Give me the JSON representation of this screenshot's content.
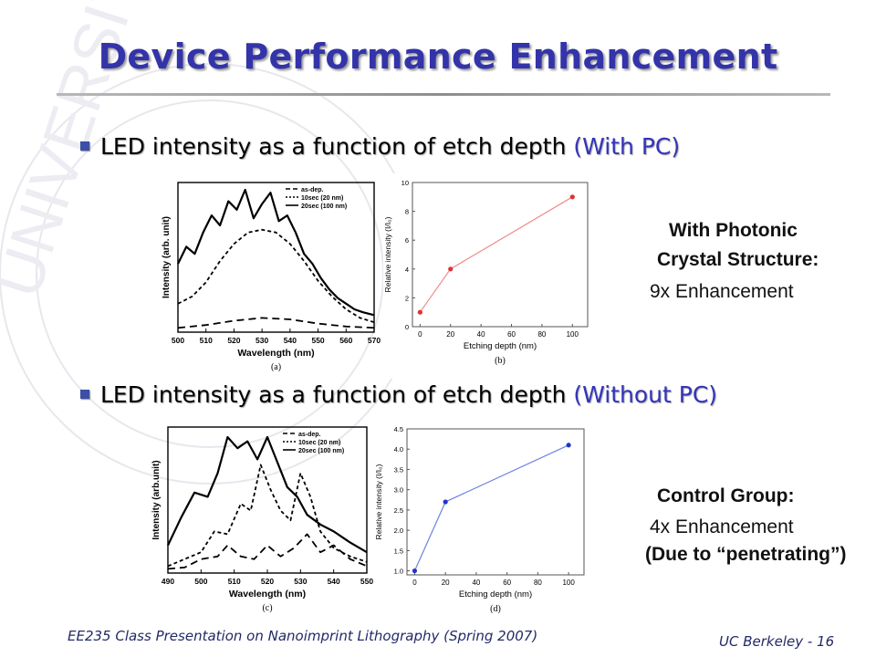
{
  "slide": {
    "title": "Device Performance Enhancement",
    "bullet1": {
      "text": "LED intensity as a function of etch depth ",
      "highlight": "(With PC)"
    },
    "bullet2": {
      "text": "LED intensity as a function of etch depth ",
      "highlight": "(Without PC)"
    },
    "note1": {
      "line1": "With Photonic",
      "line2": "Crystal Structure:",
      "line3": "9x Enhancement"
    },
    "note2": {
      "line1": "Control Group:",
      "line2": "4x Enhancement",
      "line3": "(Due to “penetrating”)"
    },
    "footer_left": "EE235 Class Presentation on Nanoimprint Lithography (Spring 2007)",
    "footer_right": "UC Berkeley - 16"
  },
  "colors": {
    "title": "#3333aa",
    "accent": "#3333bb",
    "series_pc": "#e03030",
    "series_control": "#2233cc"
  },
  "chart_data": [
    {
      "type": "line",
      "panel_label": "(a)",
      "xlabel": "Wavelength (nm)",
      "ylabel": "Intensity (arb. unit)",
      "xticks": [
        "500",
        "510",
        "520",
        "530",
        "540",
        "550",
        "560",
        "570"
      ],
      "xlim": [
        500,
        570
      ],
      "legend": [
        "as-dep.",
        "10sec (20 nm)",
        "20sec (100 nm)"
      ],
      "series": [
        {
          "name": "as-dep.",
          "x": [
            500,
            510,
            520,
            530,
            540,
            550,
            560,
            570
          ],
          "values": [
            0.03,
            0.05,
            0.08,
            0.1,
            0.09,
            0.06,
            0.04,
            0.03
          ]
        },
        {
          "name": "10sec (20 nm)",
          "x": [
            500,
            505,
            510,
            515,
            520,
            525,
            530,
            535,
            540,
            545,
            550,
            555,
            560,
            565,
            570
          ],
          "values": [
            0.2,
            0.25,
            0.35,
            0.5,
            0.62,
            0.7,
            0.72,
            0.7,
            0.62,
            0.5,
            0.36,
            0.25,
            0.16,
            0.1,
            0.07
          ]
        },
        {
          "name": "20sec (100 nm)",
          "x": [
            500,
            503,
            506,
            509,
            512,
            515,
            518,
            521,
            524,
            527,
            530,
            533,
            536,
            539,
            542,
            545,
            548,
            551,
            554,
            557,
            560,
            563,
            566,
            570
          ],
          "values": [
            0.48,
            0.6,
            0.55,
            0.7,
            0.82,
            0.75,
            0.92,
            0.86,
            1.0,
            0.8,
            0.9,
            0.98,
            0.78,
            0.82,
            0.7,
            0.55,
            0.48,
            0.38,
            0.3,
            0.24,
            0.2,
            0.16,
            0.14,
            0.12
          ]
        }
      ]
    },
    {
      "type": "scatter",
      "panel_label": "(b)",
      "xlabel": "Etching depth (nm)",
      "ylabel": "Relative intensity (I/I₀)",
      "xticks": [
        "0",
        "20",
        "40",
        "60",
        "80",
        "100"
      ],
      "yticks": [
        "0",
        "2",
        "4",
        "6",
        "8",
        "10"
      ],
      "xlim": [
        -5,
        110
      ],
      "ylim": [
        0,
        10
      ],
      "x": [
        0,
        20,
        100
      ],
      "values": [
        1,
        4,
        9
      ]
    },
    {
      "type": "line",
      "panel_label": "(c)",
      "xlabel": "Wavelength (nm)",
      "ylabel": "Intensity (arb.unit)",
      "xticks": [
        "490",
        "500",
        "510",
        "520",
        "530",
        "540",
        "550"
      ],
      "xlim": [
        490,
        550
      ],
      "legend": [
        "as-dep.",
        "10sec (20 nm)",
        "20sec (100 nm)"
      ],
      "series": [
        {
          "name": "as-dep.",
          "x": [
            490,
            495,
            500,
            505,
            508,
            512,
            516,
            520,
            524,
            528,
            532,
            536,
            540,
            545,
            550
          ],
          "values": [
            0.03,
            0.04,
            0.1,
            0.12,
            0.2,
            0.12,
            0.1,
            0.2,
            0.12,
            0.18,
            0.28,
            0.15,
            0.2,
            0.1,
            0.05
          ]
        },
        {
          "name": "10sec (20 nm)",
          "x": [
            490,
            495,
            500,
            504,
            508,
            512,
            515,
            518,
            521,
            524,
            527,
            530,
            533,
            536,
            540,
            545,
            550
          ],
          "values": [
            0.05,
            0.1,
            0.15,
            0.3,
            0.28,
            0.5,
            0.45,
            0.78,
            0.6,
            0.45,
            0.38,
            0.72,
            0.55,
            0.3,
            0.18,
            0.12,
            0.08
          ]
        },
        {
          "name": "20sec (100 nm)",
          "x": [
            490,
            494,
            498,
            502,
            505,
            508,
            511,
            514,
            517,
            520,
            523,
            526,
            529,
            532,
            536,
            540,
            545,
            550
          ],
          "values": [
            0.2,
            0.4,
            0.58,
            0.55,
            0.72,
            0.98,
            0.9,
            0.95,
            0.82,
            0.98,
            0.8,
            0.62,
            0.55,
            0.42,
            0.35,
            0.3,
            0.22,
            0.15
          ]
        }
      ]
    },
    {
      "type": "scatter",
      "panel_label": "(d)",
      "xlabel": "Etching depth (nm)",
      "ylabel": "Relative intensity (I/I₀)",
      "xticks": [
        "0",
        "20",
        "40",
        "60",
        "80",
        "100"
      ],
      "yticks": [
        "1.0",
        "1.5",
        "2.0",
        "2.5",
        "3.0",
        "3.5",
        "4.0",
        "4.5"
      ],
      "xlim": [
        -5,
        110
      ],
      "ylim": [
        0.9,
        4.5
      ],
      "x": [
        0,
        20,
        100
      ],
      "values": [
        1.0,
        2.7,
        4.1
      ]
    }
  ]
}
